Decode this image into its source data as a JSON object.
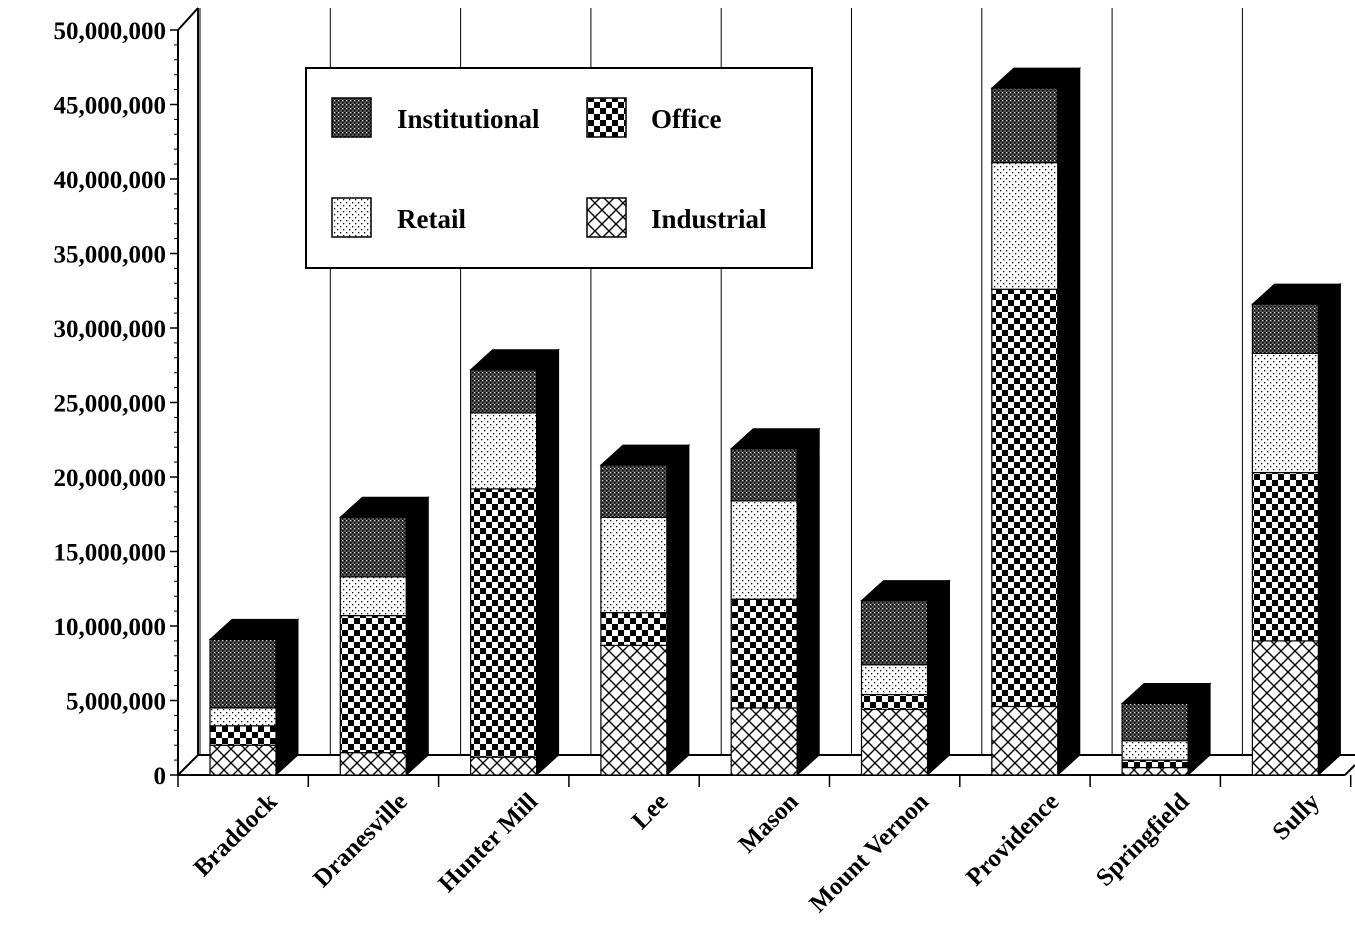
{
  "chart_data": {
    "type": "bar",
    "stacked": true,
    "three_d": true,
    "title": "",
    "xlabel": "",
    "ylabel": "",
    "ylim": [
      0,
      50000000
    ],
    "y_ticks": [
      "0",
      "5,000,000",
      "10,000,000",
      "15,000,000",
      "20,000,000",
      "25,000,000",
      "30,000,000",
      "35,000,000",
      "40,000,000",
      "45,000,000",
      "50,000,000"
    ],
    "y_tick_values": [
      0,
      5000000,
      10000000,
      15000000,
      20000000,
      25000000,
      30000000,
      35000000,
      40000000,
      45000000,
      50000000
    ],
    "grid": "vertical",
    "legend_position": "top-left",
    "categories": [
      "Braddock",
      "Dranesville",
      "Hunter Mill",
      "Lee",
      "Mason",
      "Mount Vernon",
      "Providence",
      "Springfield",
      "Sully"
    ],
    "series": [
      {
        "name": "Industrial",
        "pattern": "crosshatch",
        "values": [
          2000000,
          1500000,
          1200000,
          8700000,
          4500000,
          4400000,
          4600000,
          500000,
          9000000
        ]
      },
      {
        "name": "Office",
        "pattern": "checker",
        "values": [
          1300000,
          9200000,
          18000000,
          2200000,
          7300000,
          1000000,
          28000000,
          500000,
          11300000
        ]
      },
      {
        "name": "Retail",
        "pattern": "dots",
        "values": [
          1200000,
          2600000,
          5100000,
          6400000,
          6600000,
          2000000,
          8500000,
          1300000,
          8000000
        ]
      },
      {
        "name": "Institutional",
        "pattern": "dense-dots",
        "values": [
          4600000,
          4000000,
          2900000,
          3500000,
          3500000,
          4300000,
          5000000,
          2500000,
          3300000
        ]
      }
    ],
    "legend": {
      "items": [
        {
          "name": "Institutional",
          "pattern": "dense-dots"
        },
        {
          "name": "Office",
          "pattern": "checker"
        },
        {
          "name": "Retail",
          "pattern": "dots"
        },
        {
          "name": "Industrial",
          "pattern": "crosshatch"
        }
      ]
    }
  }
}
